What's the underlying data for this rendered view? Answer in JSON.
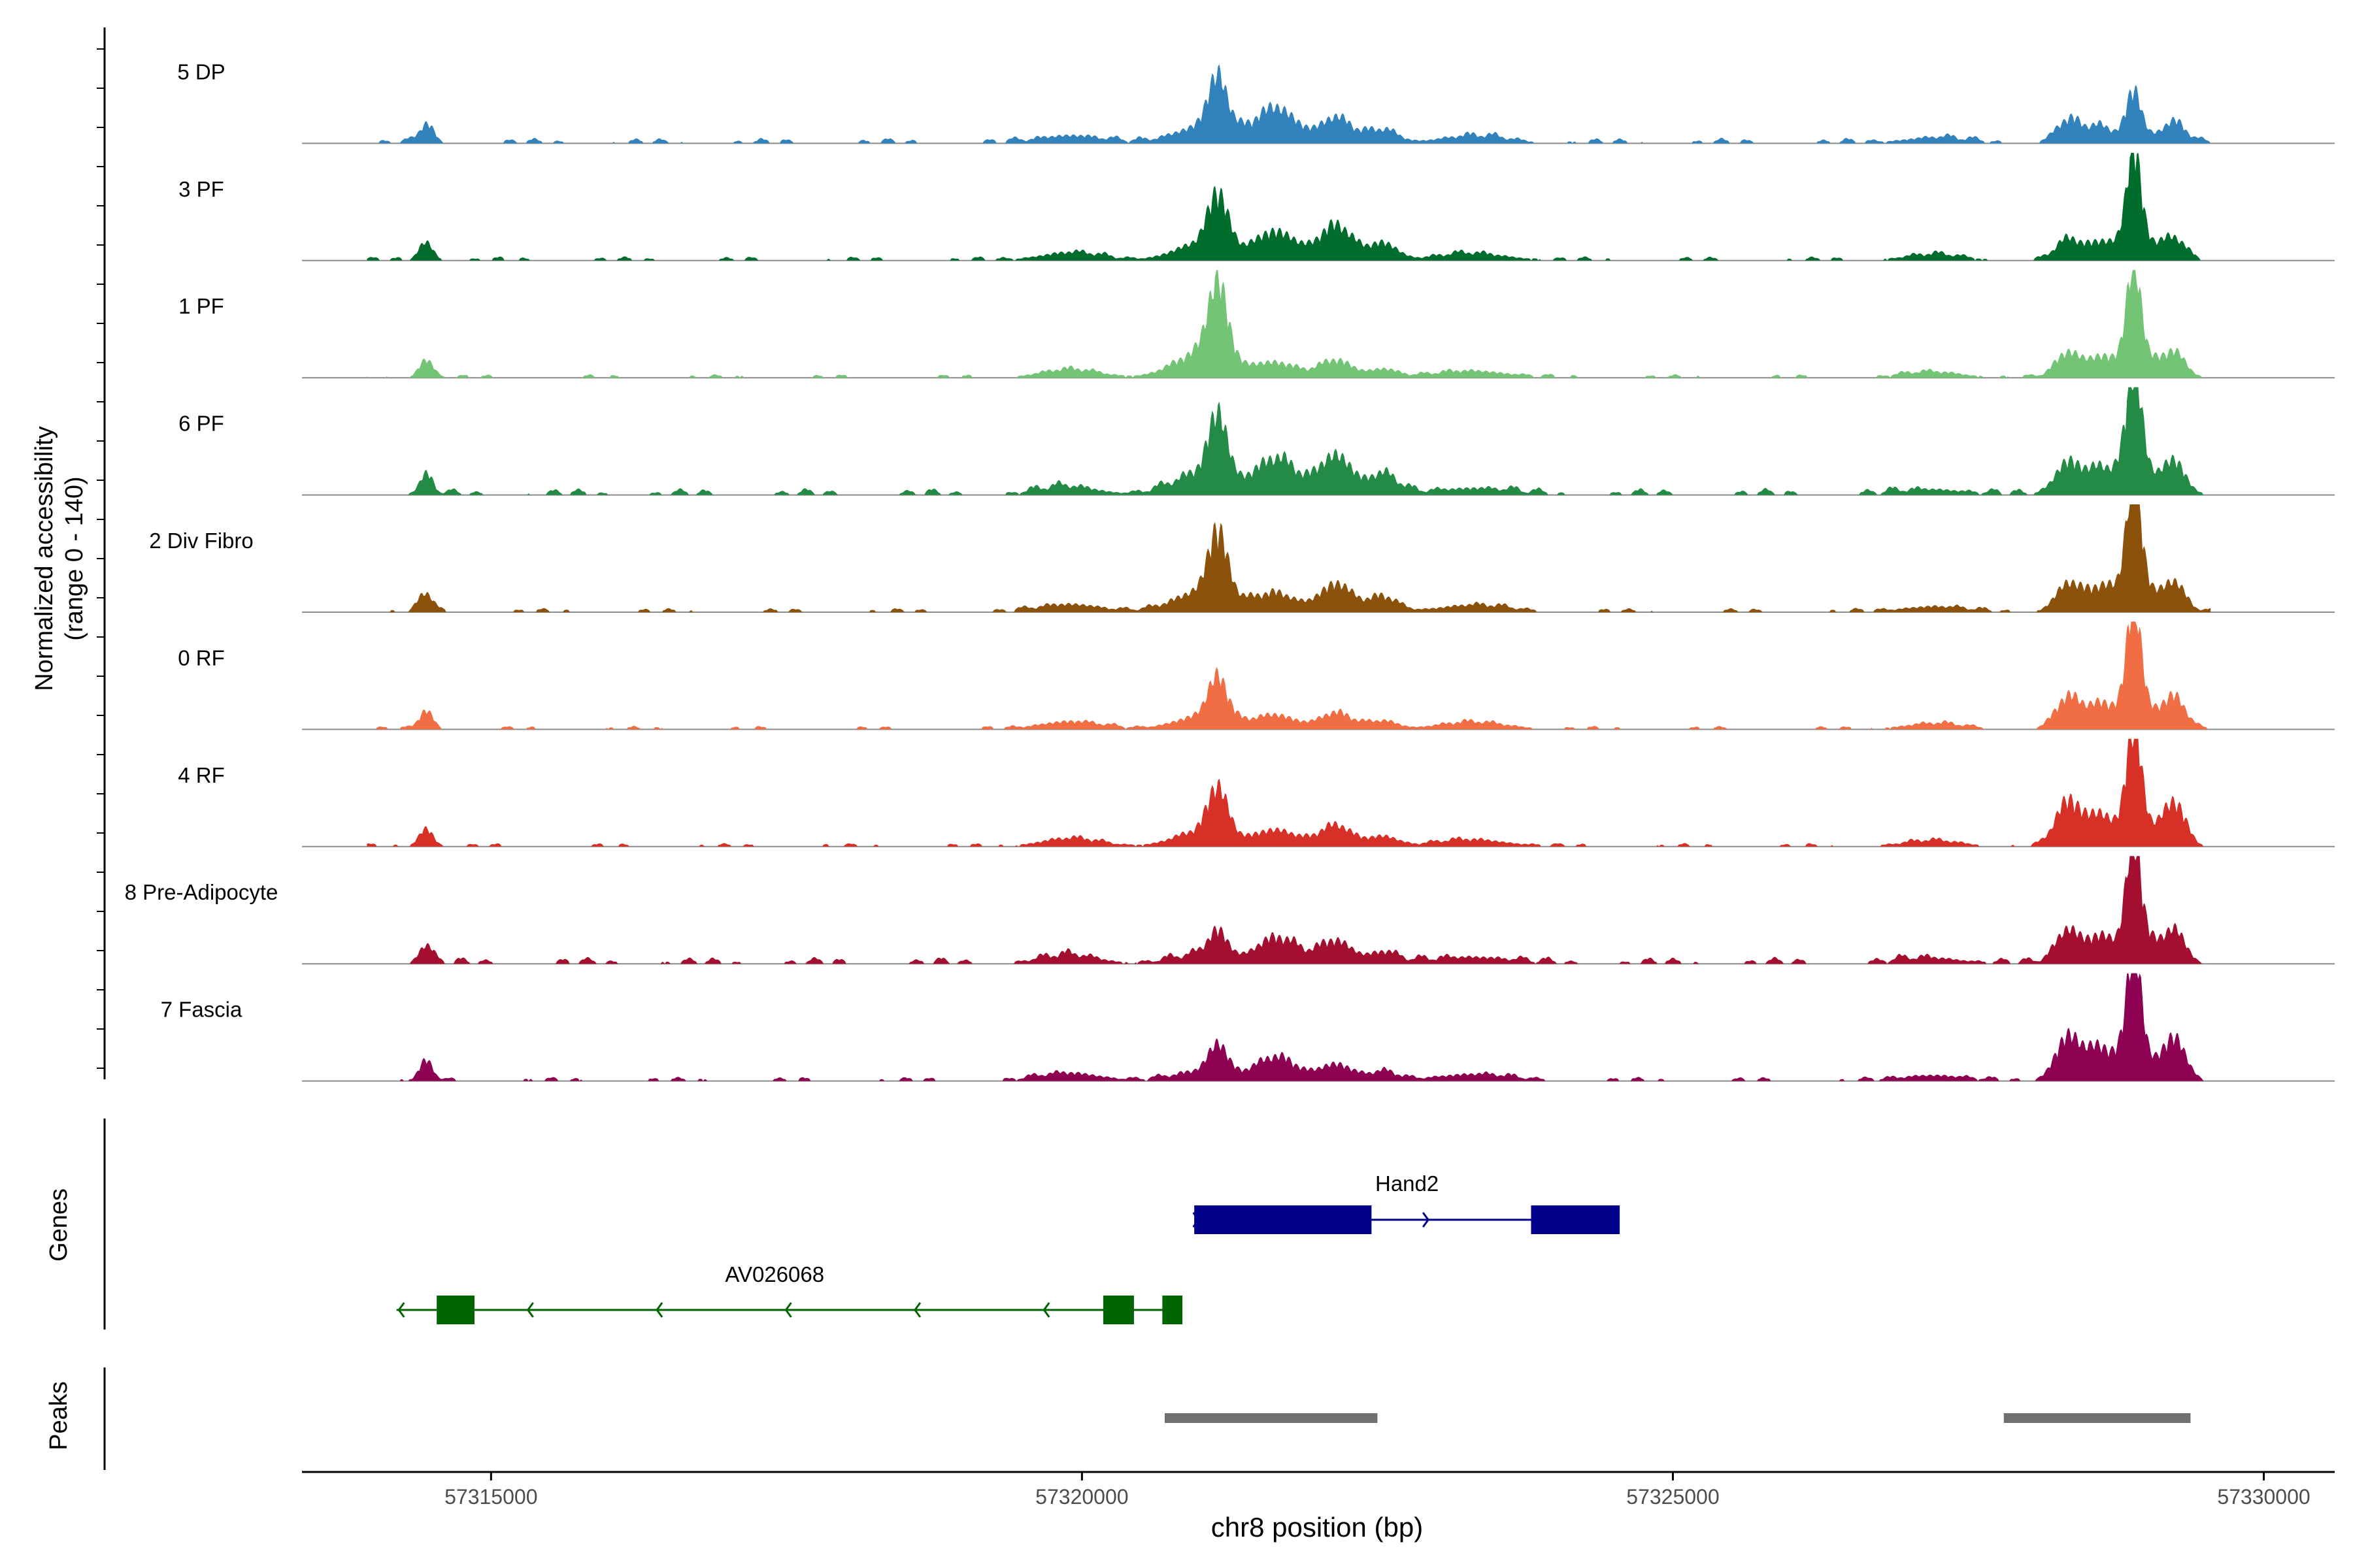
{
  "chart_data": {
    "type": "area",
    "title": "",
    "ylabel_line1": "Normalized accessibility",
    "ylabel_line2": "(range 0 - 140)",
    "ylim": [
      0,
      140
    ],
    "xlabel": "chr8 position (bp)",
    "xlim": [
      57313400,
      57330600
    ],
    "x_ticks": [
      57315000,
      57320000,
      57325000,
      57330000
    ],
    "x_tick_labels": [
      "57315000",
      "57320000",
      "57325000",
      "57330000"
    ],
    "genes_label": "Genes",
    "peaks_label": "Peaks",
    "tracks": [
      {
        "name": "5 DP",
        "color": "#3182bd",
        "peak_heights": {
          "p1": 0.45,
          "h1": 0.3,
          "h2": 0.22,
          "p2": 0.2,
          "c": 0.38,
          "b": 0.08
        }
      },
      {
        "name": "3 PF",
        "color": "#006d2c",
        "peak_heights": {
          "p1": 0.45,
          "h1": 0.25,
          "h2": 0.3,
          "p2": 0.18,
          "c": 0.8,
          "b": 0.06
        }
      },
      {
        "name": "1 PF",
        "color": "#74c476",
        "peak_heights": {
          "p1": 0.65,
          "h1": 0.12,
          "h2": 0.15,
          "p2": 0.22,
          "c": 0.8,
          "b": 0.05
        }
      },
      {
        "name": "6 PF",
        "color": "#238b45",
        "peak_heights": {
          "p1": 0.55,
          "h1": 0.3,
          "h2": 0.35,
          "p2": 0.3,
          "c": 0.95,
          "b": 0.1
        }
      },
      {
        "name": "2 Div Fibro",
        "color": "#8c510a",
        "peak_heights": {
          "p1": 0.55,
          "h1": 0.15,
          "h2": 0.25,
          "p2": 0.25,
          "c": 1.0,
          "b": 0.06
        }
      },
      {
        "name": "0 RF",
        "color": "#f16d43",
        "peak_heights": {
          "p1": 0.35,
          "h1": 0.12,
          "h2": 0.14,
          "p2": 0.28,
          "c": 0.9,
          "b": 0.05
        }
      },
      {
        "name": "4 RF",
        "color": "#d73027",
        "peak_heights": {
          "p1": 0.4,
          "h1": 0.14,
          "h2": 0.18,
          "p2": 0.4,
          "c": 0.9,
          "b": 0.05
        }
      },
      {
        "name": "8 Pre-Adipocyte",
        "color": "#a50f2f",
        "peak_heights": {
          "p1": 0.22,
          "h1": 0.22,
          "h2": 0.2,
          "p2": 0.3,
          "c": 0.9,
          "b": 0.1
        }
      },
      {
        "name": "7 Fascia",
        "color": "#8e0152",
        "peak_heights": {
          "p1": 0.25,
          "h1": 0.2,
          "h2": 0.15,
          "p2": 0.4,
          "c": 0.95,
          "b": 0.06
        }
      }
    ],
    "genes": [
      {
        "name": "Hand2",
        "strand": "+",
        "color": "#00008b",
        "start": 57320950,
        "end": 57324550,
        "exons": [
          [
            57320950,
            57322450
          ],
          [
            57323800,
            57324550
          ]
        ],
        "label_pos": 57322750
      },
      {
        "name": "AV026068",
        "strand": "-",
        "color": "#006400",
        "start": 57314200,
        "end": 57320850,
        "exons": [
          [
            57314540,
            57314860
          ],
          [
            57320180,
            57320440
          ],
          [
            57320680,
            57320850
          ]
        ],
        "label_pos": 57317400
      }
    ],
    "peaks": [
      [
        57320700,
        57322500
      ],
      [
        57327800,
        57329380
      ]
    ]
  }
}
